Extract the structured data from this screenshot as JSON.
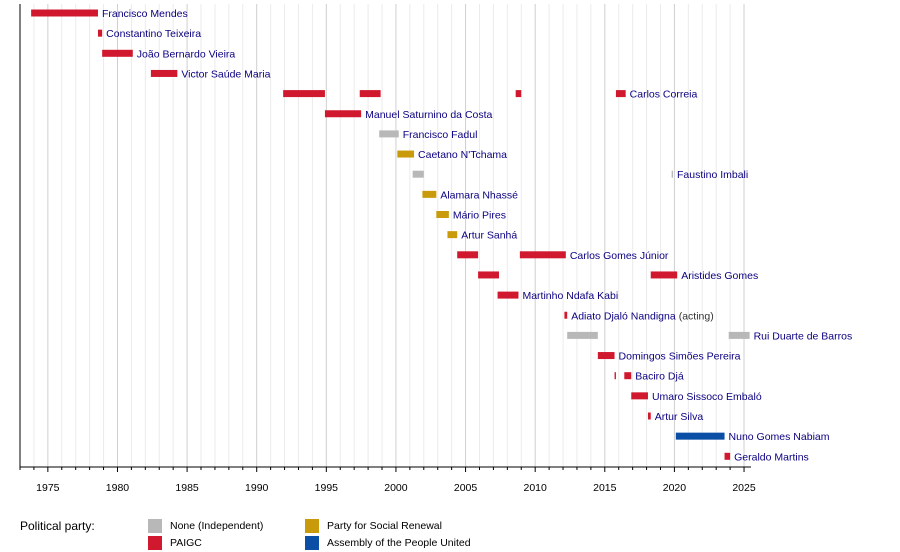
{
  "chart_data": {
    "type": "timeline",
    "xlim": [
      1973,
      2025.5
    ],
    "ticks": [
      1975,
      1980,
      1985,
      1990,
      1995,
      2000,
      2005,
      2010,
      2015,
      2020,
      2025
    ],
    "colors": {
      "None (Independent)": "#b8b8b8",
      "PAIGC": "#d0182e",
      "Party for Social Renewal": "#c99a0a",
      "Assembly of the People United": "#0b4ea6"
    },
    "rows": [
      {
        "name": "Francisco Mendes",
        "note": "",
        "segments": [
          [
            1973.8,
            1978.6,
            "PAIGC"
          ]
        ]
      },
      {
        "name": "Constantino Teixeira",
        "note": "",
        "segments": [
          [
            1978.6,
            1978.9,
            "PAIGC"
          ]
        ]
      },
      {
        "name": "João Bernardo Vieira",
        "note": "",
        "segments": [
          [
            1978.9,
            1981.1,
            "PAIGC"
          ]
        ]
      },
      {
        "name": "Victor Saúde Maria",
        "note": "",
        "segments": [
          [
            1982.4,
            1984.3,
            "PAIGC"
          ]
        ]
      },
      {
        "name": "Carlos Correia",
        "note": "",
        "segments": [
          [
            1991.9,
            1994.9,
            "PAIGC"
          ],
          [
            1997.4,
            1998.9,
            "PAIGC"
          ],
          [
            2008.6,
            2009.0,
            "PAIGC"
          ],
          [
            2015.8,
            2016.5,
            "PAIGC"
          ]
        ]
      },
      {
        "name": "Manuel Saturnino da Costa",
        "note": "",
        "segments": [
          [
            1994.9,
            1997.5,
            "PAIGC"
          ]
        ]
      },
      {
        "name": "Francisco Fadul",
        "note": "",
        "segments": [
          [
            1998.8,
            2000.2,
            "None (Independent)"
          ]
        ]
      },
      {
        "name": "Caetano N'Tchama",
        "note": "",
        "segments": [
          [
            2000.1,
            2001.3,
            "Party for Social Renewal"
          ]
        ]
      },
      {
        "name": "Faustino Imbali",
        "note": "",
        "segments": [
          [
            2001.2,
            2002.0,
            "None (Independent)"
          ],
          [
            2019.8,
            2019.9,
            "None (Independent)"
          ]
        ]
      },
      {
        "name": "Alamara Nhassé",
        "note": "",
        "segments": [
          [
            2001.9,
            2002.9,
            "Party for Social Renewal"
          ]
        ]
      },
      {
        "name": "Mário Pires",
        "note": "",
        "segments": [
          [
            2002.9,
            2003.8,
            "Party for Social Renewal"
          ]
        ]
      },
      {
        "name": "Artur Sanhá",
        "note": "",
        "segments": [
          [
            2003.7,
            2004.4,
            "Party for Social Renewal"
          ]
        ]
      },
      {
        "name": "Carlos Gomes Júnior",
        "note": "",
        "segments": [
          [
            2004.4,
            2005.9,
            "PAIGC"
          ],
          [
            2008.9,
            2012.2,
            "PAIGC"
          ]
        ]
      },
      {
        "name": "Aristides Gomes",
        "note": "",
        "segments": [
          [
            2005.9,
            2007.4,
            "PAIGC"
          ],
          [
            2018.3,
            2020.2,
            "PAIGC"
          ]
        ]
      },
      {
        "name": "Martinho Ndafa Kabi",
        "note": "",
        "segments": [
          [
            2007.3,
            2008.8,
            "PAIGC"
          ]
        ]
      },
      {
        "name": "Adiato Djaló Nandigna",
        "note": "(acting)",
        "segments": [
          [
            2012.1,
            2012.3,
            "PAIGC"
          ]
        ]
      },
      {
        "name": "Rui Duarte de Barros",
        "note": "",
        "segments": [
          [
            2012.3,
            2014.5,
            "None (Independent)"
          ],
          [
            2023.9,
            2025.4,
            "None (Independent)"
          ]
        ]
      },
      {
        "name": "Domingos Simões Pereira",
        "note": "",
        "segments": [
          [
            2014.5,
            2015.7,
            "PAIGC"
          ]
        ]
      },
      {
        "name": "Baciro Djá",
        "note": "",
        "segments": [
          [
            2015.7,
            2015.8,
            "PAIGC"
          ],
          [
            2016.4,
            2016.9,
            "PAIGC"
          ]
        ]
      },
      {
        "name": "Umaro Sissoco Embaló",
        "note": "",
        "segments": [
          [
            2016.9,
            2018.1,
            "PAIGC"
          ]
        ]
      },
      {
        "name": "Artur Silva",
        "note": "",
        "segments": [
          [
            2018.1,
            2018.3,
            "PAIGC"
          ]
        ]
      },
      {
        "name": "Nuno Gomes Nabiam",
        "note": "",
        "segments": [
          [
            2020.1,
            2023.6,
            "Assembly of the People United"
          ]
        ]
      },
      {
        "name": "Geraldo Martins",
        "note": "",
        "segments": [
          [
            2023.6,
            2024.0,
            "PAIGC"
          ]
        ]
      }
    ]
  },
  "legend": {
    "title": "Political party:",
    "items": [
      {
        "label": "None (Independent)",
        "color": "#b8b8b8"
      },
      {
        "label": "PAIGC",
        "color": "#d0182e"
      },
      {
        "label": "Party for Social Renewal",
        "color": "#c99a0a"
      },
      {
        "label": "Assembly of the People United",
        "color": "#0b4ea6"
      }
    ]
  }
}
